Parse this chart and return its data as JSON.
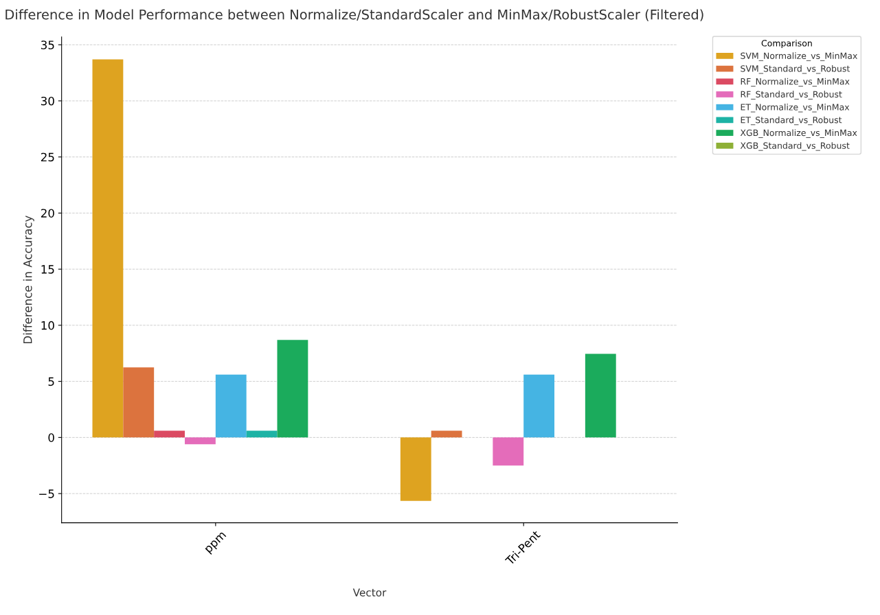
{
  "chart_data": {
    "type": "bar",
    "title": "Difference in Model Performance between Normalize/StandardScaler and MinMax/RobustScaler (Filtered)",
    "xlabel": "Vector",
    "ylabel": "Difference in Accuracy",
    "legend_title": "Comparison",
    "categories": [
      "ppm",
      "Tri-Pent"
    ],
    "series": [
      {
        "name": "SVM_Normalize_vs_MinMax",
        "color": "#dea320",
        "values": [
          33.7,
          -5.65
        ]
      },
      {
        "name": "SVM_Standard_vs_Robust",
        "color": "#dc733e",
        "values": [
          6.25,
          0.6
        ]
      },
      {
        "name": "RF_Normalize_vs_MinMax",
        "color": "#db4a62",
        "values": [
          0.6,
          0
        ]
      },
      {
        "name": "RF_Standard_vs_Robust",
        "color": "#e46cba",
        "values": [
          -0.6,
          -2.5
        ]
      },
      {
        "name": "ET_Normalize_vs_MinMax",
        "color": "#45b4e3",
        "values": [
          5.6,
          5.6
        ]
      },
      {
        "name": "ET_Standard_vs_Robust",
        "color": "#1db3a5",
        "values": [
          0.6,
          0
        ]
      },
      {
        "name": "XGB_Normalize_vs_MinMax",
        "color": "#1bab5c",
        "values": [
          8.7,
          7.45
        ]
      },
      {
        "name": "XGB_Standard_vs_Robust",
        "color": "#8eb036",
        "values": [
          0,
          0
        ]
      }
    ],
    "ylim": [
      -7.6,
      35.7
    ],
    "yticks": [
      {
        "value": -5,
        "label": "−5"
      },
      0,
      5,
      10,
      15,
      20,
      25,
      30,
      35
    ],
    "grid": "y",
    "legend": "top right"
  }
}
